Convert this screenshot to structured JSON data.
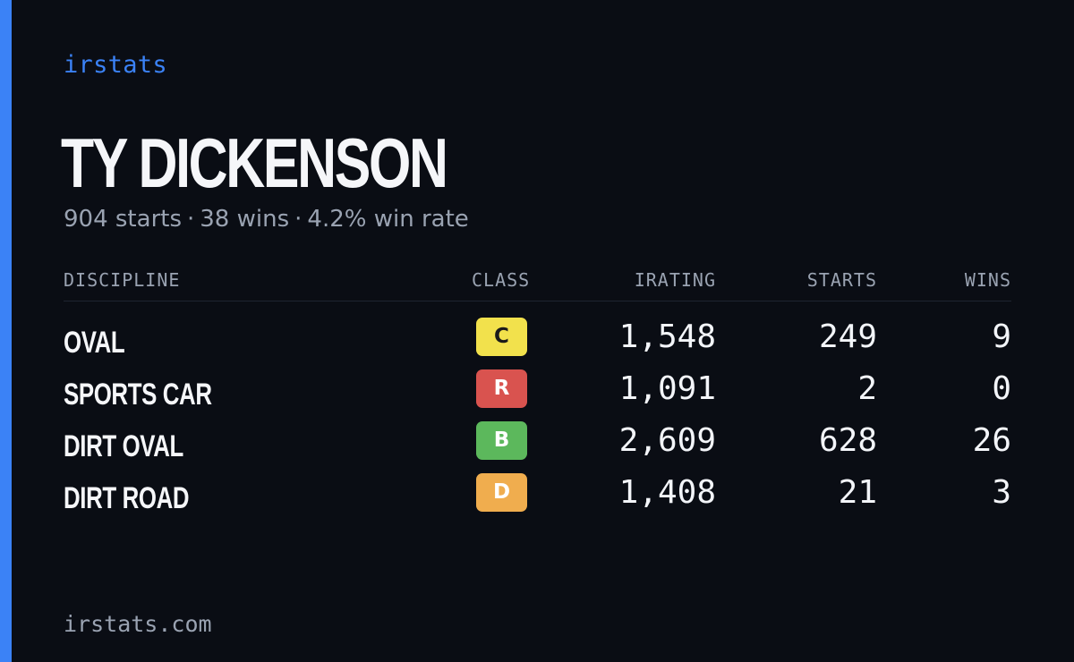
{
  "brand": "irstats",
  "driver": {
    "name": "TY DICKENSON",
    "starts_text": "904 starts",
    "wins_text": "38 wins",
    "winrate_text": "4.2% win rate",
    "separator": "·"
  },
  "table": {
    "headers": {
      "discipline": "DISCIPLINE",
      "class": "CLASS",
      "irating": "IRATING",
      "starts": "STARTS",
      "wins": "WINS"
    },
    "rows": [
      {
        "discipline": "OVAL",
        "class": "C",
        "class_color": "#f2e14c",
        "class_text_color": "#1a1a1a",
        "irating": "1,548",
        "starts": "249",
        "wins": "9"
      },
      {
        "discipline": "SPORTS CAR",
        "class": "R",
        "class_color": "#d9534f",
        "class_text_color": "#ffffff",
        "irating": "1,091",
        "starts": "2",
        "wins": "0"
      },
      {
        "discipline": "DIRT OVAL",
        "class": "B",
        "class_color": "#5cb85c",
        "class_text_color": "#ffffff",
        "irating": "2,609",
        "starts": "628",
        "wins": "26"
      },
      {
        "discipline": "DIRT ROAD",
        "class": "D",
        "class_color": "#f0ad4e",
        "class_text_color": "#ffffff",
        "irating": "1,408",
        "starts": "21",
        "wins": "3"
      }
    ]
  },
  "footer": "irstats.com",
  "colors": {
    "background": "#0a0d14",
    "accent": "#3b82f6",
    "muted": "#9aa3b2"
  }
}
